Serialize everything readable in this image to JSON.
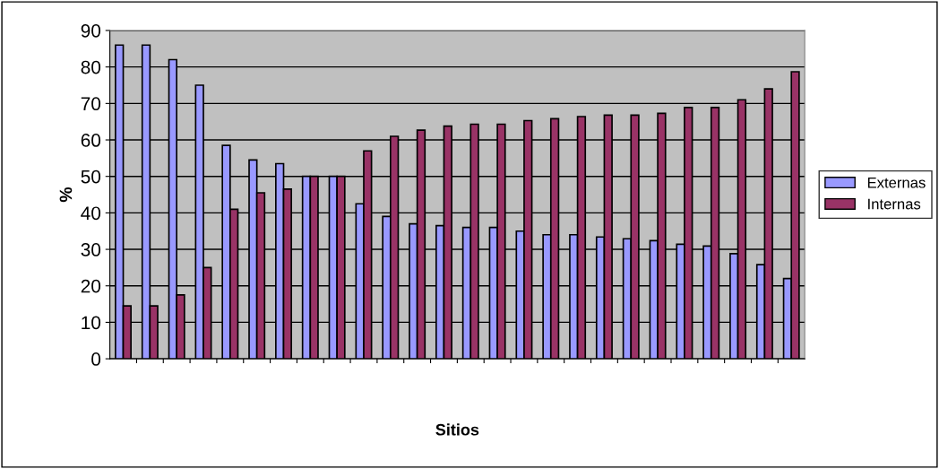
{
  "chart_data": {
    "type": "bar",
    "xlabel": "Sitios",
    "ylabel": "%",
    "categories": [
      null,
      null,
      null,
      null,
      null,
      null,
      null,
      null,
      null,
      null,
      null,
      null,
      null,
      null,
      null,
      null,
      null,
      null,
      null,
      null,
      null,
      null,
      null,
      null,
      null,
      null
    ],
    "series": [
      {
        "name": "Externas",
        "color": "#9999ff",
        "values": [
          86,
          86,
          82,
          75,
          58.5,
          54.5,
          53.5,
          50,
          50,
          42.5,
          39,
          37,
          36.5,
          36,
          36,
          35,
          34,
          34,
          33.4,
          32.9,
          32.4,
          31.4,
          30.9,
          28.8,
          25.8,
          22
        ]
      },
      {
        "name": "Internas",
        "color": "#993366",
        "values": [
          14.5,
          14.5,
          17.5,
          25,
          41,
          45.5,
          46.5,
          50,
          50,
          57,
          61,
          62.7,
          63.8,
          64.3,
          64.3,
          65.3,
          65.8,
          66.4,
          66.8,
          66.8,
          67.3,
          68.9,
          68.9,
          71,
          74,
          78.7
        ]
      }
    ],
    "ylim": [
      0,
      90
    ],
    "yticks": [
      0,
      10,
      20,
      30,
      40,
      50,
      60,
      70,
      80,
      90
    ],
    "grid": "y",
    "legend": "right"
  }
}
